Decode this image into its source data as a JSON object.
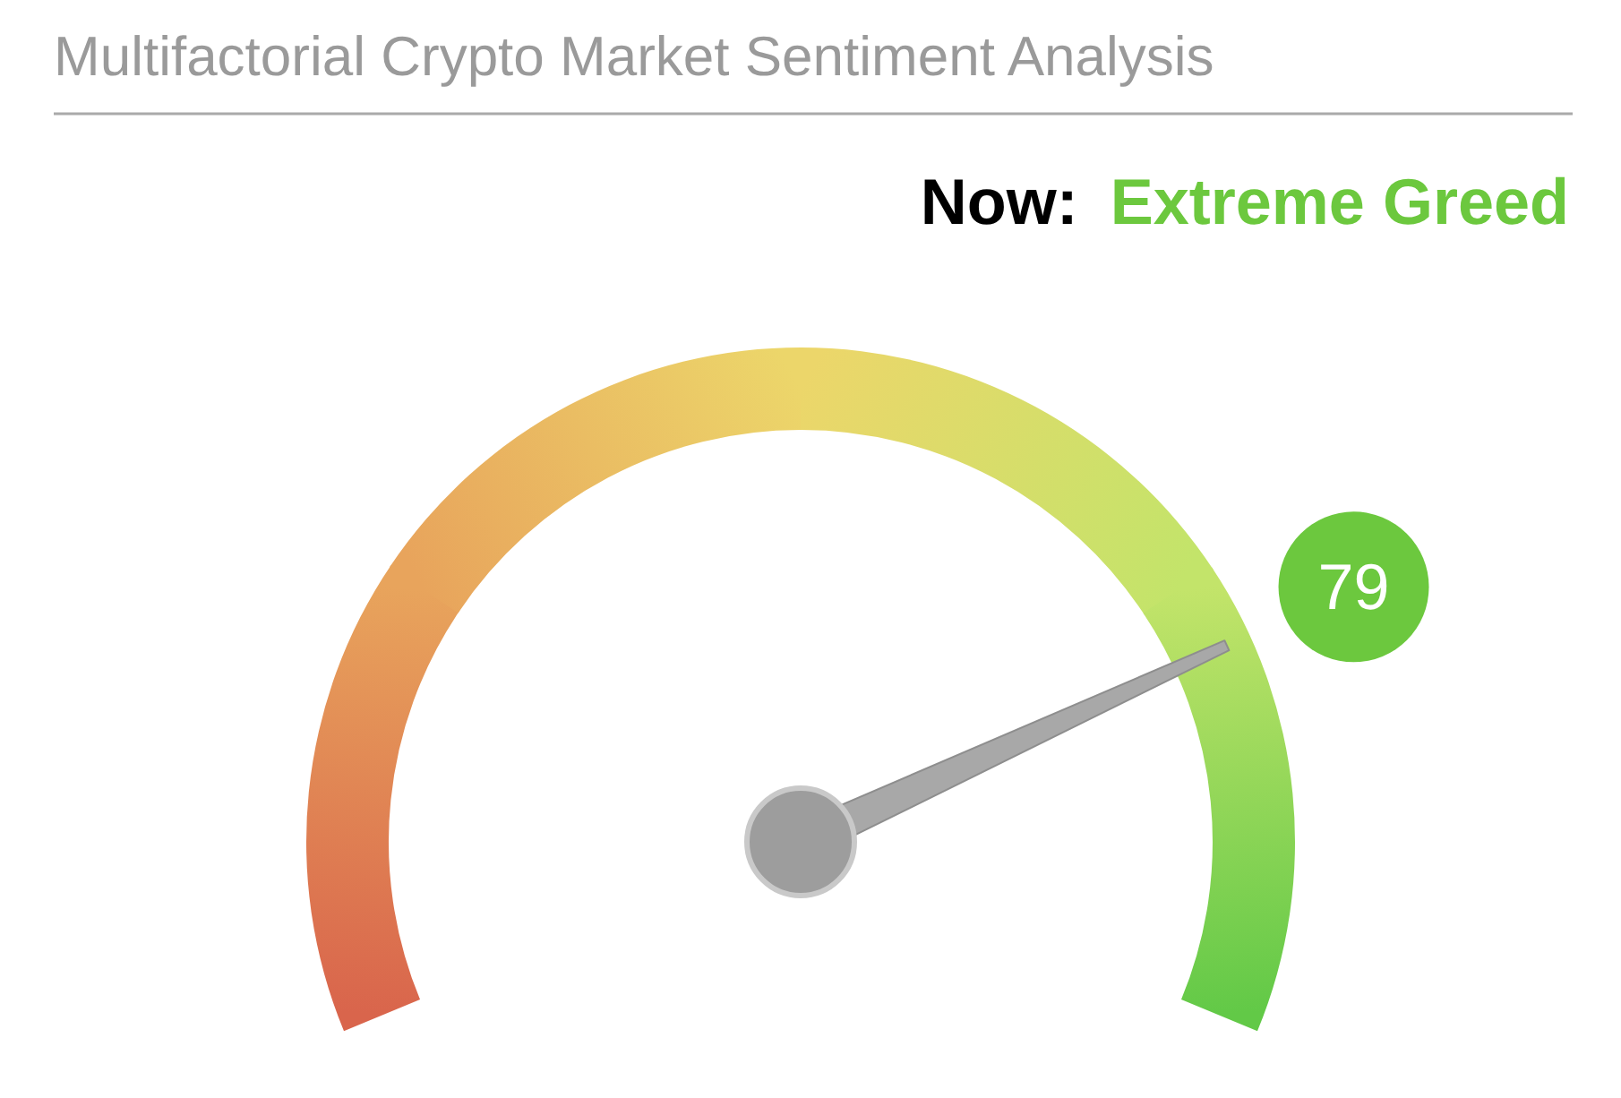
{
  "chart_data": {
    "type": "other",
    "title": "Multifactorial Crypto Market Sentiment Analysis",
    "annotations": [
      "Now:",
      "Extreme Greed"
    ],
    "values": [
      79
    ],
    "data_labels": true,
    "color": "#6cc83e"
  }
}
